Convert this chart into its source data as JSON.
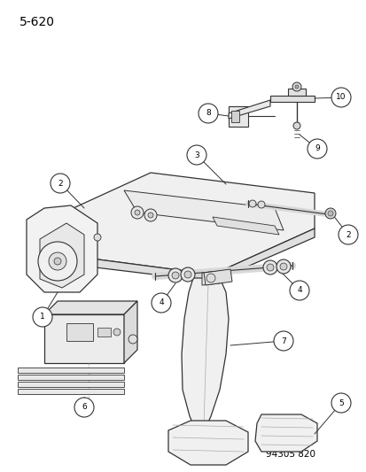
{
  "page_number": "5-620",
  "part_number": "94305 820",
  "bg": "#ffffff",
  "lc": "#333333",
  "title_fontsize": 10,
  "part_num_fontsize": 7.5
}
